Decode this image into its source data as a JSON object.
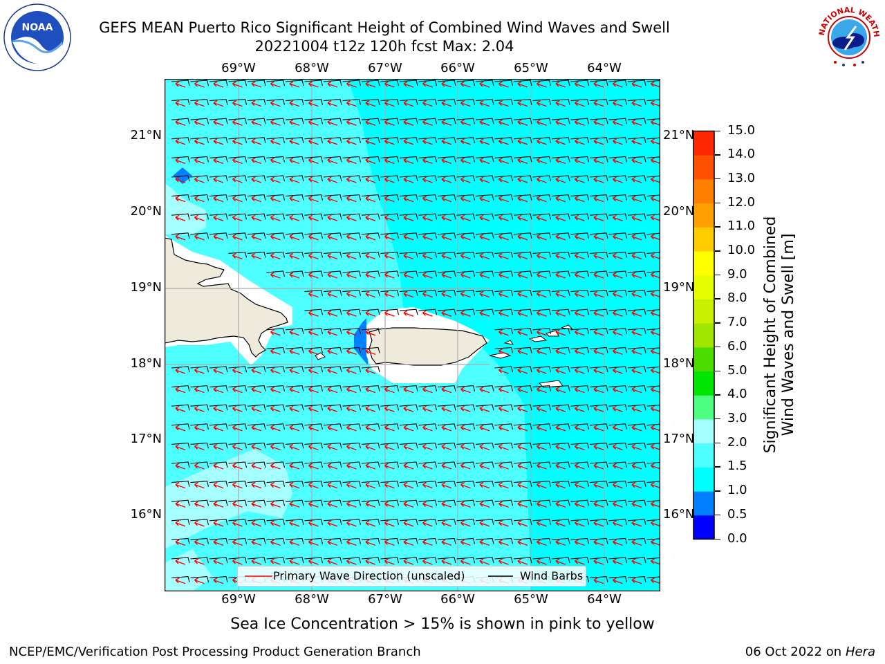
{
  "header": {
    "title_line1": "GEFS MEAN Puerto Rico Significant Height of Combined Wind Waves and Swell",
    "title_line2": "20221004 t12z 120h fcst   Max: 2.04"
  },
  "logos": {
    "left": {
      "name": "noaa-logo",
      "text": "NOAA"
    },
    "right": {
      "name": "nws-logo",
      "text": "NATIONAL WEATHER SERVICE"
    }
  },
  "map": {
    "lon_labels": [
      "69°W",
      "68°W",
      "67°W",
      "66°W",
      "65°W",
      "64°W"
    ],
    "lat_labels": [
      "21°N",
      "20°N",
      "19°N",
      "18°N",
      "17°N",
      "16°N"
    ],
    "land_color": "#efebdc",
    "sea_color": "#00ffff"
  },
  "legend": {
    "wave_label": "Primary Wave Direction (unscaled)",
    "barb_label": "Wind Barbs",
    "wave_color": "#ff0000",
    "barb_color": "#000000"
  },
  "colorbar": {
    "label_line1": "Significant Height of Combined",
    "label_line2": "Wind Waves and Swell [m]",
    "ticks": [
      "0.0",
      "0.5",
      "1.0",
      "1.5",
      "2.0",
      "3.0",
      "4.0",
      "5.0",
      "6.0",
      "7.0",
      "8.0",
      "9.0",
      "10.0",
      "11.0",
      "12.0",
      "13.0",
      "14.0",
      "15.0"
    ],
    "colors": [
      "#0000ff",
      "#0080ff",
      "#00ffff",
      "#4dffff",
      "#a6ffff",
      "#4dff80",
      "#00e600",
      "#4ddc00",
      "#a0e600",
      "#c8f000",
      "#e6ff00",
      "#ffff00",
      "#ffcc00",
      "#ffa000",
      "#ff8000",
      "#ff5000",
      "#ff2800",
      "#ff0000"
    ]
  },
  "notes": {
    "sea_ice": "Sea Ice Concentration > 15% is shown in pink to yellow"
  },
  "footer": {
    "left": "NCEP/EMC/Verification Post Processing Product Generation Branch",
    "right_prefix": "06 Oct 2022 on ",
    "right_host": "Hera"
  }
}
